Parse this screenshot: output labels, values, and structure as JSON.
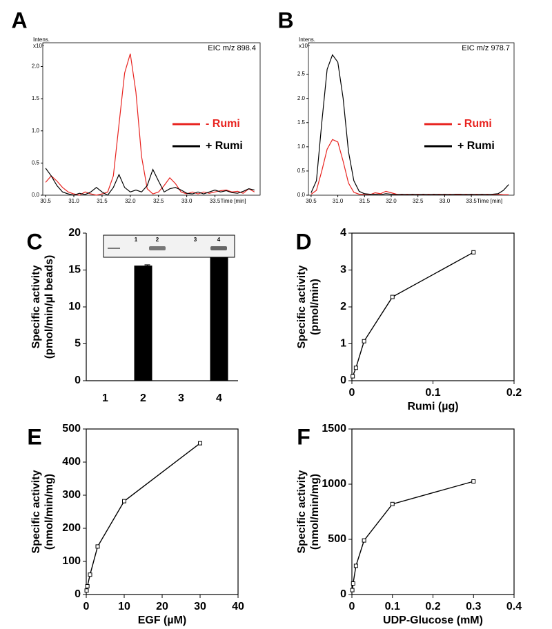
{
  "chart_data": [
    {
      "panel": "A",
      "type": "line",
      "frame": "box",
      "annotation": "EIC m/z  898.4",
      "ylabel": "Intens.",
      "yscale_label": "x10⁵",
      "xlabel": "Time [min]",
      "xlim": [
        30.45,
        34.3
      ],
      "xticks": [
        30.5,
        {
          "value": 31,
          "label": "31.0"
        },
        31.5,
        {
          "value": 32,
          "label": "32.0"
        },
        32.5,
        {
          "value": 33,
          "label": "33.0"
        },
        33.5
      ],
      "ylim": [
        0,
        2.37
      ],
      "yticks": [
        {
          "value": 0,
          "label": "0.0"
        },
        0.5,
        {
          "value": 1,
          "label": "1.0"
        },
        1.5,
        {
          "value": 2,
          "label": "2.0"
        }
      ],
      "x": [
        30.5,
        30.6,
        30.7,
        30.8,
        30.9,
        31.0,
        31.1,
        31.2,
        31.3,
        31.4,
        31.5,
        31.6,
        31.7,
        31.8,
        31.9,
        32.0,
        32.1,
        32.2,
        32.3,
        32.4,
        32.5,
        32.6,
        32.7,
        32.8,
        32.9,
        33.0,
        33.1,
        33.2,
        33.3,
        33.4,
        33.5,
        33.6,
        33.7,
        33.8,
        33.9,
        34.0,
        34.1,
        34.2
      ],
      "series": [
        {
          "name": "- Rumi",
          "color": "#e8231f",
          "values": [
            0.2,
            0.3,
            0.22,
            0.12,
            0.05,
            0.02,
            0,
            0.05,
            0.02,
            0,
            0.02,
            0.05,
            0.3,
            1.1,
            1.9,
            2.2,
            1.6,
            0.6,
            0.1,
            0.02,
            0.05,
            0.15,
            0.27,
            0.18,
            0.05,
            0.02,
            0.05,
            0.02,
            0.05,
            0.03,
            0.05,
            0.07,
            0.08,
            0.05,
            0.06,
            0.03,
            0.1,
            0.05
          ]
        },
        {
          "name": "+ Rumi",
          "color": "#000000",
          "values": [
            0.42,
            0.3,
            0.15,
            0.05,
            0.02,
            0,
            0.03,
            0.01,
            0.05,
            0.12,
            0.05,
            0,
            0.12,
            0.32,
            0.12,
            0.05,
            0.08,
            0.05,
            0.15,
            0.4,
            0.22,
            0.05,
            0.1,
            0.12,
            0.08,
            0.03,
            0.02,
            0.05,
            0.02,
            0.05,
            0.08,
            0.05,
            0.07,
            0.04,
            0.03,
            0.06,
            0.1,
            0.08
          ]
        }
      ]
    },
    {
      "panel": "B",
      "type": "line",
      "frame": "box",
      "annotation": "EIC m/z  978.7",
      "ylabel": "Intens.",
      "yscale_label": "x10⁵",
      "xlabel": "Time [min]",
      "xlim": [
        30.45,
        34.3
      ],
      "xticks": [
        30.5,
        {
          "value": 31,
          "label": "31.0"
        },
        31.5,
        {
          "value": 32,
          "label": "32.0"
        },
        32.5,
        {
          "value": 33,
          "label": "33.0"
        },
        33.5
      ],
      "ylim": [
        0,
        3.15
      ],
      "yticks": [
        {
          "value": 0,
          "label": "0.0"
        },
        0.5,
        {
          "value": 1,
          "label": "1.0"
        },
        1.5,
        {
          "value": 2,
          "label": "2.0"
        },
        2.5
      ],
      "x": [
        30.5,
        30.6,
        30.7,
        30.8,
        30.9,
        31.0,
        31.1,
        31.2,
        31.3,
        31.4,
        31.5,
        31.6,
        31.7,
        31.8,
        31.9,
        32.0,
        32.1,
        32.2,
        32.3,
        32.4,
        32.5,
        32.6,
        32.7,
        32.8,
        32.9,
        33.0,
        33.1,
        33.2,
        33.3,
        33.4,
        33.5,
        33.6,
        33.7,
        33.8,
        33.9,
        34.0,
        34.1,
        34.2
      ],
      "series": [
        {
          "name": "- Rumi",
          "color": "#e8231f",
          "values": [
            0.02,
            0.1,
            0.5,
            0.95,
            1.15,
            1.1,
            0.7,
            0.25,
            0.06,
            0.02,
            0.02,
            0.01,
            0.05,
            0.03,
            0.08,
            0.05,
            0.02,
            0.01,
            0.02,
            0.01,
            0.02,
            0.01,
            0.02,
            0.01,
            0.02,
            0.01,
            0.02,
            0.01,
            0.01,
            0.02,
            0.01,
            0.02,
            0.01,
            0.02,
            0.01,
            0.02,
            0.01,
            0.01
          ]
        },
        {
          "name": "+ Rumi",
          "color": "#000000",
          "values": [
            0.05,
            0.3,
            1.5,
            2.6,
            2.9,
            2.75,
            2.0,
            0.9,
            0.3,
            0.08,
            0.03,
            0.02,
            0.02,
            0.01,
            0.03,
            0.02,
            0.01,
            0.02,
            0.01,
            0.02,
            0.01,
            0.02,
            0.01,
            0.02,
            0.01,
            0.02,
            0.01,
            0.02,
            0.02,
            0.01,
            0.02,
            0.01,
            0.02,
            0.01,
            0.02,
            0.03,
            0.1,
            0.22
          ]
        }
      ]
    },
    {
      "panel": "C",
      "type": "bar",
      "frame": "axes",
      "ylabel": [
        "Specific activity",
        "(pmol/min/µl beads)"
      ],
      "categories": [
        "1",
        "2",
        "3",
        "4"
      ],
      "values": [
        0,
        15.6,
        0,
        17.2
      ],
      "errors": [
        null,
        0.1,
        null,
        0.7
      ],
      "color": "#000000",
      "ylim": [
        0,
        20
      ],
      "yticks": [
        0,
        5,
        10,
        15,
        20
      ],
      "inset_labels": [
        "1",
        "2",
        "3",
        "4"
      ]
    },
    {
      "panel": "D",
      "type": "line",
      "frame": "box",
      "markers": true,
      "ylabel": [
        "Specific activity",
        "(pmol/min)"
      ],
      "xlabel": "Rumi (µg)",
      "xlim": [
        0,
        0.2
      ],
      "xticks": [
        0,
        0.1,
        0.2
      ],
      "ylim": [
        0,
        4
      ],
      "yticks": [
        0,
        1,
        2,
        3,
        4
      ],
      "x": [
        0.001,
        0.005,
        0.015,
        0.05,
        0.15
      ],
      "series": [
        {
          "color": "#000000",
          "values": [
            0.12,
            0.35,
            1.07,
            2.27,
            3.48
          ]
        }
      ]
    },
    {
      "panel": "E",
      "type": "line",
      "frame": "box",
      "markers": true,
      "ylabel": [
        "Specific activity",
        "(nmol/min/mg)"
      ],
      "xlabel": "EGF (µM)",
      "xlim": [
        0,
        40
      ],
      "xticks": [
        0,
        10,
        20,
        30,
        40
      ],
      "ylim": [
        0,
        500
      ],
      "yticks": [
        0,
        100,
        200,
        300,
        400,
        500
      ],
      "x": [
        0.1,
        0.3,
        1,
        3,
        10,
        30
      ],
      "series": [
        {
          "color": "#000000",
          "values": [
            12,
            25,
            60,
            145,
            282,
            457
          ]
        }
      ]
    },
    {
      "panel": "F",
      "type": "line",
      "frame": "box",
      "markers": true,
      "ylabel": [
        "Specific activity",
        "(nmol/min/mg)"
      ],
      "xlabel": "UDP-Glucose (mM)",
      "xlim": [
        0,
        0.4
      ],
      "xticks": [
        0,
        0.1,
        0.2,
        0.3,
        0.4
      ],
      "ylim": [
        0,
        1500
      ],
      "yticks": [
        0,
        500,
        1000,
        1500
      ],
      "x": [
        0.001,
        0.003,
        0.01,
        0.03,
        0.1,
        0.3
      ],
      "series": [
        {
          "color": "#000000",
          "values": [
            40,
            100,
            260,
            490,
            820,
            1025
          ]
        }
      ]
    }
  ]
}
